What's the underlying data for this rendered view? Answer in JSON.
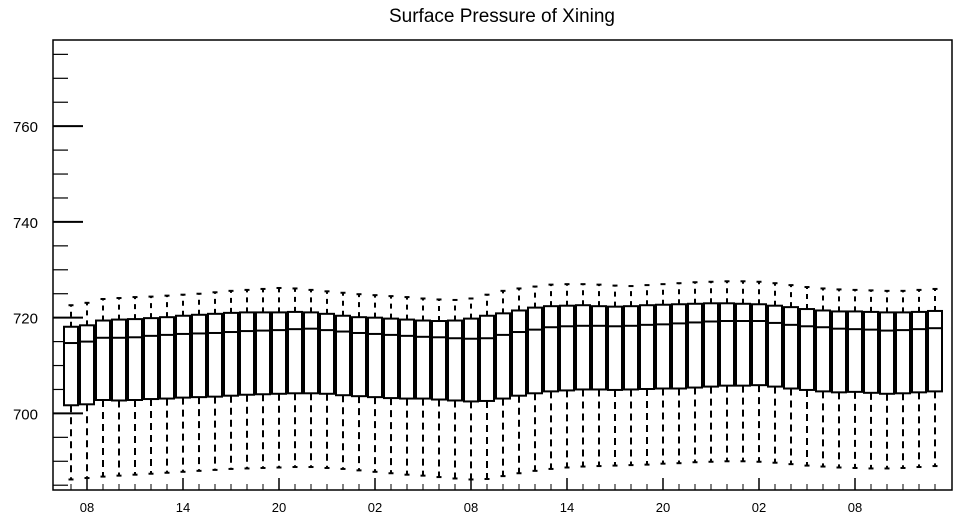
{
  "chart_data": {
    "type": "boxplot",
    "title": "Surface Pressure of Xining",
    "xlabel": "",
    "ylabel": "",
    "ylim": [
      684,
      778
    ],
    "y_major_ticks": [
      700,
      720,
      740,
      760
    ],
    "y_minor_step": 5,
    "grid": false,
    "legend": "none",
    "x_tick_labels": [
      "08",
      "14",
      "20",
      "02",
      "08",
      "14",
      "20",
      "02",
      "08"
    ],
    "colors": {
      "box_edge": "#000000",
      "box_fill": "#ffffff",
      "background": "#ffffff"
    },
    "series": [
      {
        "q1": [
          701.7,
          701.9,
          702.8,
          702.7,
          702.8,
          703.0,
          703.1,
          703.3,
          703.4,
          703.5,
          703.7,
          703.9,
          704.0,
          704.1,
          704.2,
          704.2,
          704.1,
          703.8,
          703.6,
          703.4,
          703.2,
          703.1,
          703.1,
          702.9,
          702.7,
          702.5,
          702.6,
          703.1,
          703.7,
          704.2,
          704.6,
          704.8,
          705.0,
          705.0,
          704.9,
          705.0,
          705.1,
          705.2,
          705.2,
          705.4,
          705.6,
          705.8,
          705.8,
          705.9,
          705.6,
          705.2,
          704.9,
          704.6,
          704.4,
          704.5,
          704.3,
          704.1,
          704.2,
          704.4,
          704.6
        ],
        "median": [
          714.7,
          715.0,
          715.8,
          715.8,
          715.9,
          716.2,
          716.4,
          716.6,
          716.7,
          716.8,
          717.0,
          717.2,
          717.3,
          717.4,
          717.6,
          717.7,
          717.4,
          717.1,
          716.8,
          716.6,
          716.4,
          716.2,
          716.0,
          715.9,
          715.7,
          715.6,
          715.7,
          716.4,
          717.0,
          717.5,
          718.0,
          718.2,
          718.3,
          718.3,
          718.2,
          718.3,
          718.5,
          718.6,
          718.8,
          719.0,
          719.2,
          719.3,
          719.3,
          719.3,
          718.9,
          718.5,
          718.2,
          718.0,
          717.7,
          717.6,
          717.5,
          717.3,
          717.4,
          717.6,
          717.8
        ],
        "q3": [
          718.1,
          718.4,
          719.4,
          719.6,
          719.7,
          719.9,
          720.1,
          720.4,
          720.6,
          720.8,
          721.0,
          721.1,
          721.1,
          721.1,
          721.2,
          721.1,
          720.8,
          720.4,
          720.1,
          720.0,
          719.8,
          719.6,
          719.4,
          719.3,
          719.4,
          719.8,
          720.4,
          720.9,
          721.5,
          722.1,
          722.4,
          722.5,
          722.6,
          722.4,
          722.3,
          722.4,
          722.6,
          722.7,
          722.8,
          722.9,
          723.0,
          723.0,
          722.9,
          722.8,
          722.5,
          722.2,
          721.8,
          721.5,
          721.3,
          721.3,
          721.2,
          721.1,
          721.1,
          721.2,
          721.4
        ],
        "whisker_high": [
          722.6,
          723.1,
          723.9,
          724.1,
          724.3,
          724.4,
          724.6,
          724.8,
          725.0,
          725.3,
          725.6,
          725.8,
          726.0,
          726.2,
          726.1,
          725.8,
          725.5,
          725.2,
          724.9,
          724.7,
          724.5,
          724.3,
          724.0,
          723.8,
          723.7,
          724.0,
          724.8,
          725.6,
          726.1,
          726.5,
          726.9,
          727.0,
          727.0,
          726.9,
          726.7,
          726.6,
          726.8,
          727.0,
          727.2,
          727.4,
          727.5,
          727.6,
          727.6,
          727.5,
          727.2,
          726.8,
          726.4,
          726.1,
          725.9,
          725.8,
          725.7,
          725.6,
          725.6,
          725.8,
          726.0
        ],
        "whisker_low": [
          686.2,
          686.5,
          686.8,
          687.0,
          687.2,
          687.4,
          687.6,
          687.8,
          688.0,
          688.2,
          688.4,
          688.5,
          688.6,
          688.7,
          688.8,
          688.8,
          688.6,
          688.4,
          688.1,
          687.8,
          687.5,
          687.2,
          687.0,
          686.7,
          686.4,
          686.2,
          686.3,
          686.9,
          687.5,
          688.0,
          688.4,
          688.7,
          688.9,
          689.0,
          689.1,
          689.2,
          689.3,
          689.5,
          689.6,
          689.8,
          689.9,
          690.0,
          690.0,
          689.9,
          689.7,
          689.4,
          689.1,
          688.9,
          688.7,
          688.6,
          688.5,
          688.5,
          688.6,
          688.8,
          689.0
        ]
      }
    ]
  }
}
